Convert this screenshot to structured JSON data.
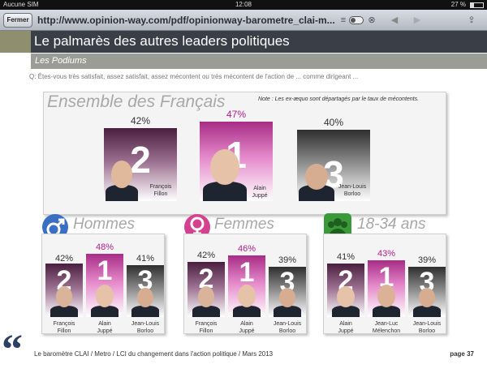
{
  "status_bar": {
    "carrier": "Aucune SIM",
    "time": "12:08",
    "battery": "27 %"
  },
  "toolbar": {
    "close_label": "Fermer",
    "url": "http://www.opinion-way.com/pdf/opinionway-barometre_clai-m...",
    "reader_icon": "reader-icon",
    "close_icon": "close-circle-icon",
    "back_icon": "back-arrow-icon",
    "forward_icon": "forward-arrow-icon",
    "share_icon": "share-icon"
  },
  "header": {
    "title": "Le palmarès des autres leaders politiques",
    "subtitle": "Les Podiums"
  },
  "question": "Q: Êtes-vous très satisfait, assez satisfait, assez mécontent ou très mécontent de l'action de ... comme dirigeant ...",
  "ensemble": {
    "title": "Ensemble des Français",
    "note": "Note : Les ex-æquo sont départagés par le taux de mécontents.",
    "podium": [
      {
        "rank": "2",
        "pct": "42%",
        "first": "François",
        "last": "Fillon"
      },
      {
        "rank": "1",
        "pct": "47%",
        "first": "Alain",
        "last": "Juppé"
      },
      {
        "rank": "3",
        "pct": "40%",
        "first": "Jean-Louis",
        "last": "Borloo"
      }
    ]
  },
  "hommes": {
    "title": "Hommes",
    "podium": [
      {
        "rank": "2",
        "pct": "42%",
        "first": "François",
        "last": "Fillon"
      },
      {
        "rank": "1",
        "pct": "48%",
        "first": "Alain",
        "last": "Juppé"
      },
      {
        "rank": "3",
        "pct": "41%",
        "first": "Jean-Louis",
        "last": "Borloo"
      }
    ]
  },
  "femmes": {
    "title": "Femmes",
    "podium": [
      {
        "rank": "2",
        "pct": "42%",
        "first": "François",
        "last": "Fillon"
      },
      {
        "rank": "1",
        "pct": "46%",
        "first": "Alain",
        "last": "Juppé"
      },
      {
        "rank": "3",
        "pct": "39%",
        "first": "Jean-Louis",
        "last": "Borloo"
      }
    ]
  },
  "jeunes": {
    "title": "18-34 ans",
    "podium": [
      {
        "rank": "2",
        "pct": "41%",
        "first": "Alain",
        "last": "Juppé"
      },
      {
        "rank": "1",
        "pct": "43%",
        "first": "Jean-Luc",
        "last": "Mélenchon"
      },
      {
        "rank": "3",
        "pct": "39%",
        "first": "Jean-Louis",
        "last": "Borloo"
      }
    ]
  },
  "footer": {
    "quote_mark": "“",
    "text": "Le baromètre CLAI / Metro / LCI du changement dans l'action politique / Mars 2013",
    "page": "page 37"
  },
  "colors": {
    "accent_pink": "#b0208c",
    "header_bg": "#3a3e47",
    "male_blue": "#3b6fc4",
    "female_pink": "#d4418e",
    "youth_green": "#3a9a3a"
  }
}
